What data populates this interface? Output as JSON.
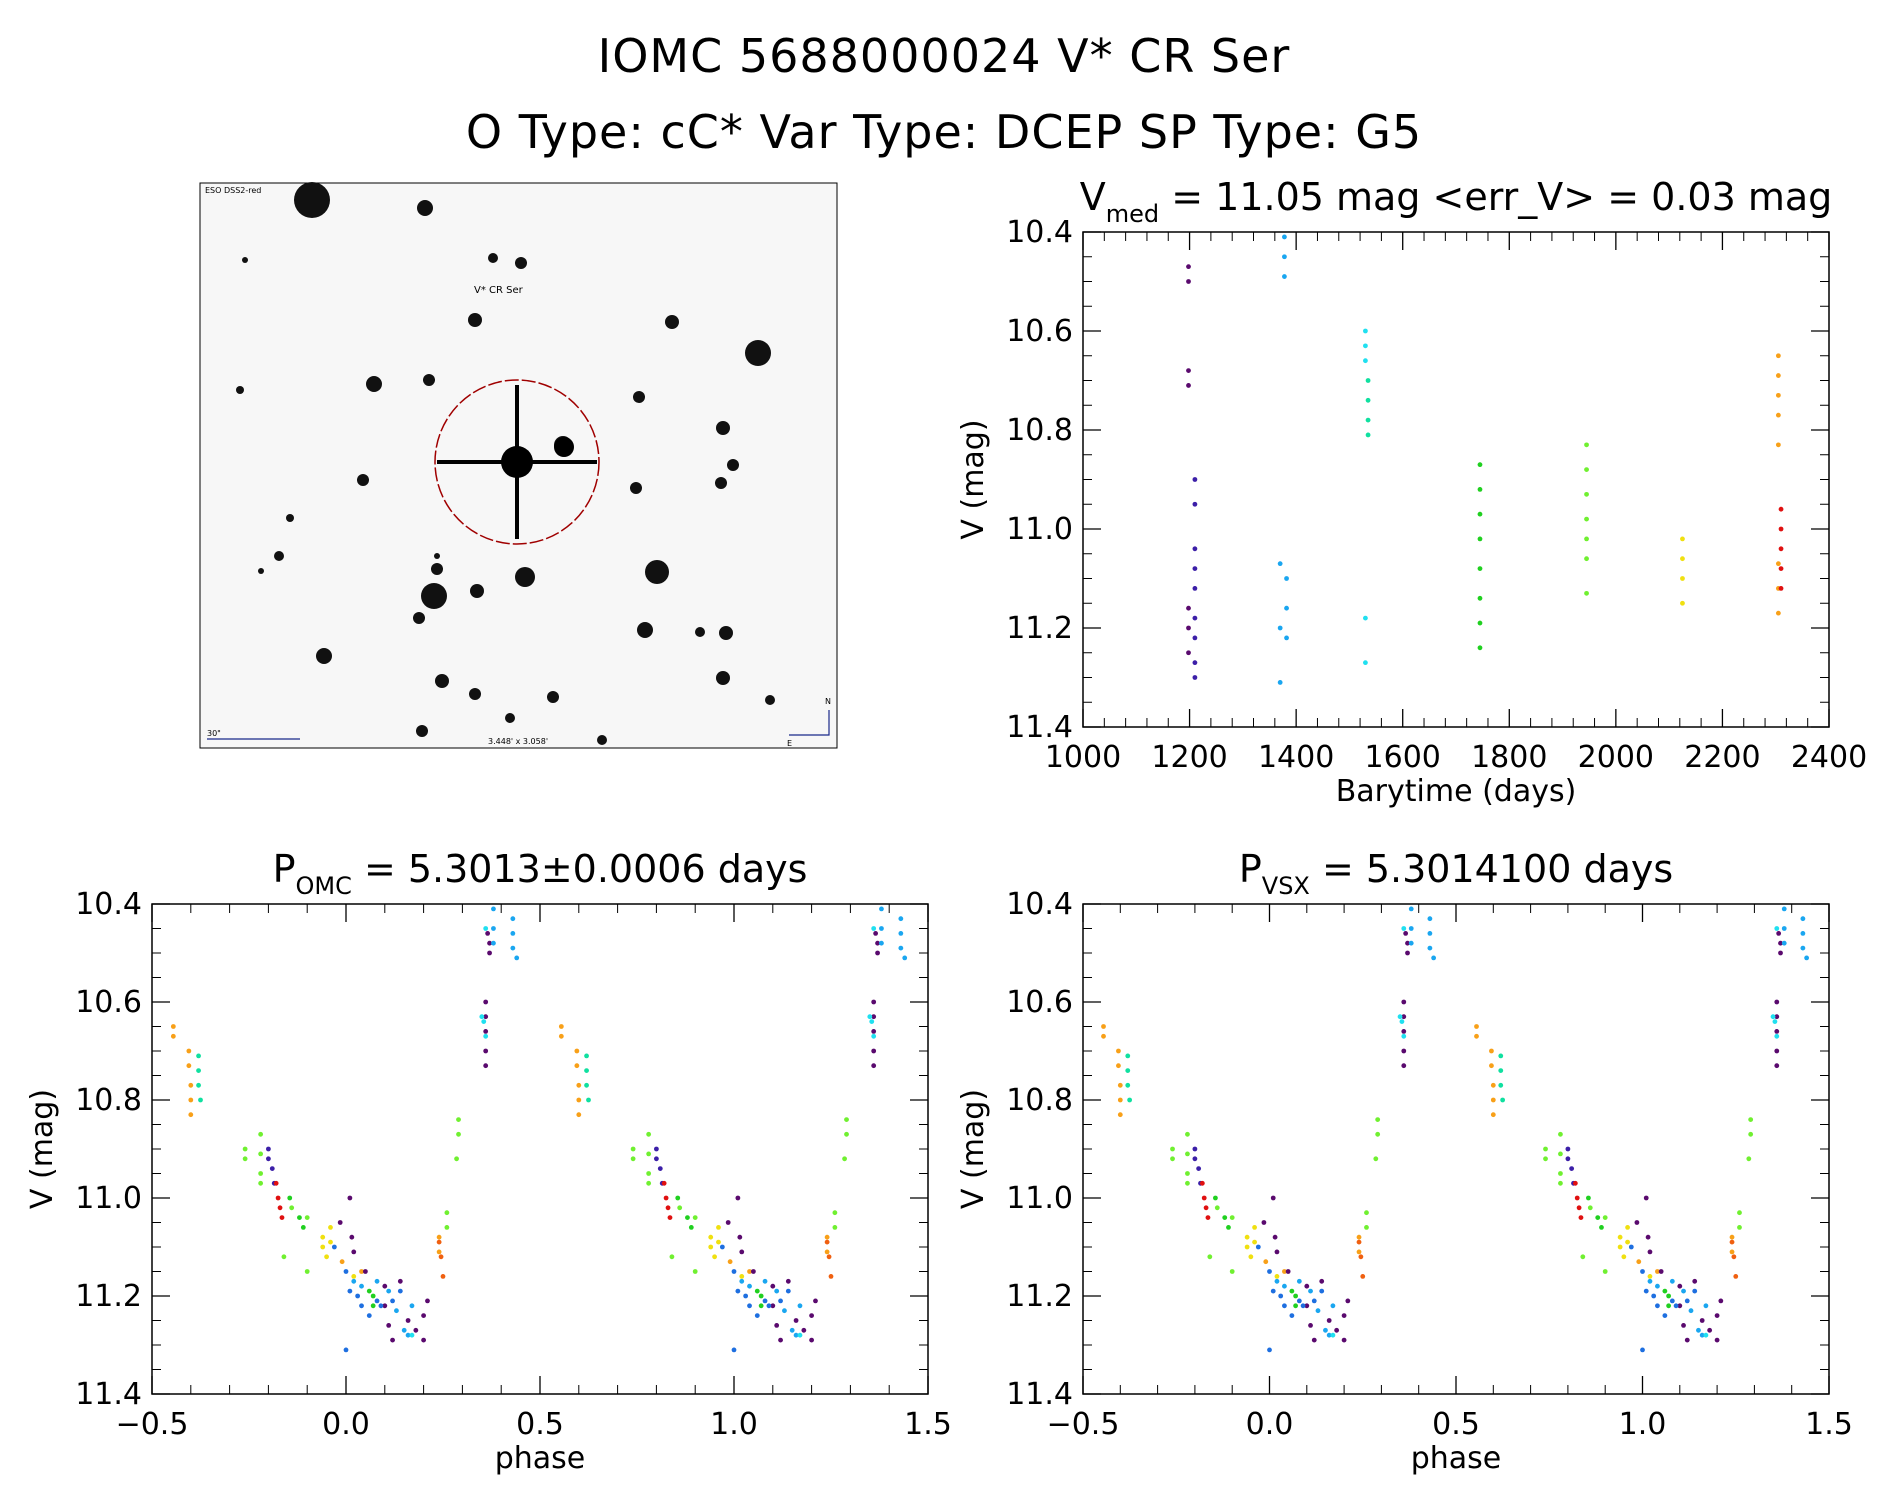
{
  "header": {
    "line1": "IOMC 5688000024   V* CR Ser",
    "line2": "O Type: cC*  Var Type: DCEP  SP Type: G5"
  },
  "finder": {
    "survey_label": "ESO DSS2-red",
    "target_label": "V* CR Ser",
    "scale_label": "30\"",
    "fov_label": "3.448' x 3.058'",
    "north_label": "N",
    "east_label": "E"
  },
  "colors": {
    "axis": "#000000",
    "circle": "#a00000",
    "palette": {
      "purple": "#5a0a6e",
      "indigo": "#3c1fa8",
      "blue": "#1e6fe0",
      "azure": "#1aa6f0",
      "cyan": "#20e0f0",
      "teal": "#10e0a0",
      "green": "#20d020",
      "lime": "#70f030",
      "yellow": "#f0e010",
      "orange": "#f8a018",
      "orangered": "#f06010",
      "red": "#e01010"
    }
  },
  "chart_data": [
    {
      "id": "lightcurve",
      "type": "scatter",
      "title_main": "V",
      "title_sub": "med",
      "title_rest": " = 11.05 mag <err_V> = 0.03 mag",
      "xlabel": "Barytime (days)",
      "ylabel": "V (mag)",
      "xlim": [
        1000,
        2400
      ],
      "ylim": [
        11.4,
        10.4
      ],
      "y_inverted": true,
      "xticks": [
        1000,
        1200,
        1400,
        1600,
        1800,
        2000,
        2200,
        2400
      ],
      "yticks": [
        "10.4",
        "10.6",
        "10.8",
        "11.0",
        "11.2",
        "11.4"
      ],
      "series": [
        {
          "color": "purple",
          "points": [
            [
              1198,
              10.47
            ],
            [
              1198,
              10.5
            ],
            [
              1198,
              10.68
            ],
            [
              1198,
              10.71
            ],
            [
              1198,
              11.16
            ],
            [
              1198,
              11.2
            ],
            [
              1198,
              11.25
            ]
          ]
        },
        {
          "color": "indigo",
          "points": [
            [
              1210,
              10.9
            ],
            [
              1210,
              10.95
            ],
            [
              1210,
              11.04
            ],
            [
              1210,
              11.08
            ],
            [
              1210,
              11.12
            ],
            [
              1210,
              11.18
            ],
            [
              1210,
              11.22
            ],
            [
              1210,
              11.27
            ],
            [
              1210,
              11.3
            ]
          ]
        },
        {
          "color": "azure",
          "points": [
            [
              1378,
              10.41
            ],
            [
              1378,
              10.45
            ],
            [
              1378,
              10.49
            ],
            [
              1370,
              11.07
            ],
            [
              1370,
              11.2
            ],
            [
              1370,
              11.31
            ],
            [
              1382,
              11.1
            ],
            [
              1382,
              11.16
            ],
            [
              1382,
              11.22
            ]
          ]
        },
        {
          "color": "cyan",
          "points": [
            [
              1530,
              10.6
            ],
            [
              1530,
              10.63
            ],
            [
              1530,
              10.66
            ],
            [
              1530,
              11.18
            ],
            [
              1530,
              11.27
            ]
          ]
        },
        {
          "color": "teal",
          "points": [
            [
              1535,
              10.7
            ],
            [
              1535,
              10.74
            ],
            [
              1535,
              10.78
            ],
            [
              1535,
              10.81
            ]
          ]
        },
        {
          "color": "green",
          "points": [
            [
              1745,
              10.87
            ],
            [
              1745,
              10.92
            ],
            [
              1745,
              10.97
            ],
            [
              1745,
              11.02
            ],
            [
              1745,
              11.08
            ],
            [
              1745,
              11.14
            ],
            [
              1745,
              11.19
            ],
            [
              1745,
              11.24
            ]
          ]
        },
        {
          "color": "lime",
          "points": [
            [
              1945,
              10.83
            ],
            [
              1945,
              10.88
            ],
            [
              1945,
              10.93
            ],
            [
              1945,
              10.98
            ],
            [
              1945,
              11.02
            ],
            [
              1945,
              11.06
            ],
            [
              1945,
              11.13
            ]
          ]
        },
        {
          "color": "yellow",
          "points": [
            [
              2125,
              11.02
            ],
            [
              2125,
              11.06
            ],
            [
              2125,
              11.1
            ],
            [
              2125,
              11.15
            ]
          ]
        },
        {
          "color": "orange",
          "points": [
            [
              2305,
              10.65
            ],
            [
              2305,
              10.69
            ],
            [
              2305,
              10.73
            ],
            [
              2305,
              10.77
            ],
            [
              2305,
              10.83
            ],
            [
              2305,
              11.07
            ],
            [
              2305,
              11.12
            ],
            [
              2305,
              11.17
            ]
          ]
        },
        {
          "color": "red",
          "points": [
            [
              2310,
              10.96
            ],
            [
              2310,
              11.0
            ],
            [
              2310,
              11.04
            ],
            [
              2310,
              11.08
            ],
            [
              2310,
              11.12
            ]
          ]
        }
      ]
    },
    {
      "id": "phase-omc",
      "type": "scatter",
      "title_main": "P",
      "title_sub": "OMC",
      "title_rest": " = 5.3013±0.0006 days",
      "xlabel": "phase",
      "ylabel": "V (mag)",
      "xlim": [
        -0.5,
        1.5
      ],
      "ylim": [
        11.4,
        10.4
      ],
      "y_inverted": true,
      "xticks": [
        "−0.5",
        "0.0",
        "0.5",
        "1.0",
        "1.5"
      ],
      "yticks": [
        "10.4",
        "10.6",
        "10.8",
        "11.0",
        "11.2",
        "11.4"
      ],
      "repeat_offset": 1.0,
      "series": [
        {
          "color": "orange",
          "points": [
            [
              -0.445,
              10.65
            ],
            [
              -0.445,
              10.67
            ],
            [
              -0.405,
              10.7
            ],
            [
              -0.405,
              10.73
            ],
            [
              -0.4,
              10.77
            ],
            [
              -0.4,
              10.8
            ],
            [
              -0.4,
              10.83
            ],
            [
              0.24,
              11.08
            ],
            [
              0.24,
              11.11
            ],
            [
              -0.01,
              11.13
            ],
            [
              0.04,
              11.15
            ]
          ]
        },
        {
          "color": "teal",
          "points": [
            [
              -0.38,
              10.71
            ],
            [
              -0.38,
              10.74
            ],
            [
              -0.38,
              10.77
            ],
            [
              -0.375,
              10.8
            ]
          ]
        },
        {
          "color": "lime",
          "points": [
            [
              -0.26,
              10.9
            ],
            [
              -0.26,
              10.92
            ],
            [
              -0.22,
              10.87
            ],
            [
              -0.22,
              10.91
            ],
            [
              -0.22,
              10.95
            ],
            [
              -0.22,
              10.97
            ],
            [
              0.29,
              10.84
            ],
            [
              0.29,
              10.87
            ],
            [
              0.285,
              10.92
            ],
            [
              -0.14,
              11.02
            ],
            [
              -0.1,
              11.04
            ],
            [
              0.26,
              11.03
            ],
            [
              0.26,
              11.06
            ],
            [
              -0.16,
              11.12
            ],
            [
              -0.1,
              11.15
            ]
          ]
        },
        {
          "color": "indigo",
          "points": [
            [
              -0.2,
              10.9
            ],
            [
              -0.2,
              10.92
            ],
            [
              -0.19,
              10.94
            ],
            [
              -0.185,
              10.97
            ]
          ]
        },
        {
          "color": "red",
          "points": [
            [
              -0.18,
              10.97
            ],
            [
              -0.175,
              11.0
            ],
            [
              -0.17,
              11.02
            ],
            [
              -0.165,
              11.04
            ]
          ]
        },
        {
          "color": "green",
          "points": [
            [
              -0.145,
              11.0
            ],
            [
              -0.12,
              11.04
            ],
            [
              -0.11,
              11.06
            ],
            [
              0.06,
              11.19
            ],
            [
              0.07,
              11.2
            ],
            [
              0.07,
              11.22
            ]
          ]
        },
        {
          "color": "yellow",
          "points": [
            [
              -0.06,
              11.08
            ],
            [
              -0.06,
              11.1
            ],
            [
              -0.05,
              11.12
            ],
            [
              -0.04,
              11.06
            ],
            [
              -0.04,
              11.09
            ],
            [
              0.02,
              11.16
            ]
          ]
        },
        {
          "color": "purple",
          "points": [
            [
              -0.015,
              11.05
            ],
            [
              0.01,
              11.0
            ],
            [
              0.015,
              11.08
            ],
            [
              0.02,
              11.11
            ],
            [
              0.05,
              11.15
            ],
            [
              0.1,
              11.18
            ],
            [
              0.1,
              11.22
            ],
            [
              0.11,
              11.26
            ],
            [
              0.12,
              11.29
            ],
            [
              0.14,
              11.17
            ],
            [
              0.16,
              11.25
            ],
            [
              0.18,
              11.27
            ],
            [
              0.2,
              11.29
            ],
            [
              0.2,
              11.24
            ],
            [
              0.21,
              11.21
            ],
            [
              0.36,
              10.6
            ],
            [
              0.36,
              10.63
            ],
            [
              0.36,
              10.66
            ],
            [
              0.36,
              10.7
            ],
            [
              0.36,
              10.73
            ],
            [
              0.365,
              10.46
            ],
            [
              0.37,
              10.48
            ],
            [
              0.37,
              10.5
            ]
          ]
        },
        {
          "color": "blue",
          "points": [
            [
              -0.03,
              11.1
            ],
            [
              0.0,
              11.15
            ],
            [
              0.01,
              11.19
            ],
            [
              0.03,
              11.2
            ],
            [
              0.04,
              11.22
            ],
            [
              0.06,
              11.24
            ],
            [
              0.08,
              11.21
            ],
            [
              0.0,
              11.31
            ],
            [
              0.09,
              11.22
            ],
            [
              0.12,
              11.21
            ],
            [
              0.14,
              11.19
            ]
          ]
        },
        {
          "color": "azure",
          "points": [
            [
              0.02,
              11.17
            ],
            [
              0.04,
              11.18
            ],
            [
              0.08,
              11.17
            ],
            [
              0.11,
              11.19
            ],
            [
              0.13,
              11.23
            ],
            [
              0.15,
              11.27
            ],
            [
              0.16,
              11.28
            ],
            [
              0.17,
              11.22
            ],
            [
              0.38,
              10.41
            ],
            [
              0.38,
              10.45
            ],
            [
              0.38,
              10.48
            ],
            [
              0.43,
              10.43
            ],
            [
              0.43,
              10.46
            ],
            [
              0.43,
              10.49
            ],
            [
              0.44,
              10.51
            ]
          ]
        },
        {
          "color": "cyan",
          "points": [
            [
              0.35,
              10.63
            ],
            [
              0.355,
              10.64
            ],
            [
              0.36,
              10.67
            ],
            [
              0.36,
              10.45
            ],
            [
              0.17,
              11.28
            ]
          ]
        },
        {
          "color": "orangered",
          "points": [
            [
              0.24,
              11.09
            ],
            [
              0.245,
              11.12
            ],
            [
              0.25,
              11.16
            ]
          ]
        }
      ]
    },
    {
      "id": "phase-vsx",
      "type": "scatter",
      "title_main": "P",
      "title_sub": "VSX",
      "title_rest": " = 5.3014100 days",
      "xlabel": "phase",
      "ylabel": "V (mag)",
      "xlim": [
        -0.5,
        1.5
      ],
      "ylim": [
        11.4,
        10.4
      ],
      "y_inverted": true,
      "xticks": [
        "−0.5",
        "0.0",
        "0.5",
        "1.0",
        "1.5"
      ],
      "yticks": [
        "10.4",
        "10.6",
        "10.8",
        "11.0",
        "11.2",
        "11.4"
      ],
      "repeat_offset": 1.0,
      "same_points_as": "phase-omc"
    }
  ]
}
